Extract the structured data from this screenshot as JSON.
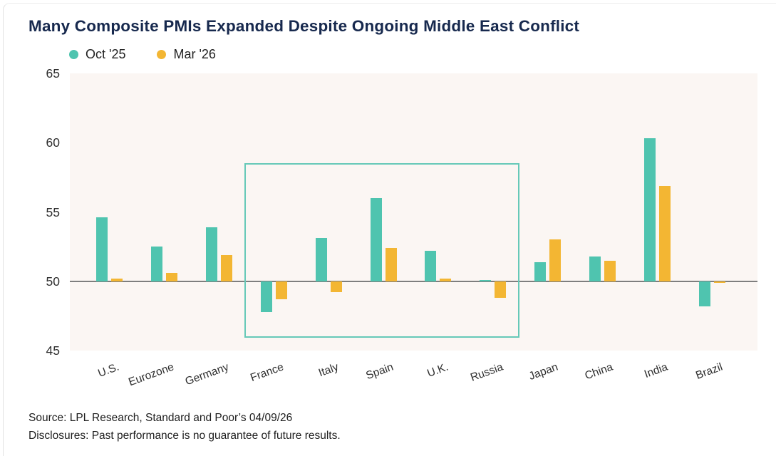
{
  "title": "Many Composite PMIs Expanded Despite Ongoing Middle East Conflict",
  "colors": {
    "title_navy": "#17294e",
    "oct_teal": "#4fc4af",
    "mar_gold": "#f3b633",
    "plot_background": "#fbf6f3",
    "baseline_gray": "#7e7e7e",
    "annotation_teal": "#66c9b8"
  },
  "chart_data": {
    "type": "bar",
    "title": "Many Composite PMIs Expanded Despite Ongoing Middle East Conflict",
    "categories": [
      "U.S.",
      "Eurozone",
      "Germany",
      "France",
      "Italy",
      "Spain",
      "U.K.",
      "Russia",
      "Japan",
      "China",
      "India",
      "Brazil"
    ],
    "series": [
      {
        "name": "Oct '25",
        "color": "#4fc4af",
        "values": [
          54.6,
          52.5,
          53.9,
          47.8,
          53.1,
          56.0,
          52.2,
          50.1,
          51.4,
          51.8,
          60.3,
          48.2
        ]
      },
      {
        "name": "Mar '26",
        "color": "#f3b633",
        "values": [
          50.2,
          50.6,
          51.9,
          48.7,
          49.2,
          52.4,
          50.2,
          48.8,
          53.0,
          51.5,
          56.9,
          49.9
        ]
      }
    ],
    "xlabel": "",
    "ylabel": "",
    "ylim": [
      45,
      65
    ],
    "yticks": [
      45,
      50,
      55,
      60,
      65
    ],
    "baseline": 50,
    "grid": false,
    "legend_position": "top-left",
    "annotation_box": {
      "from_category": "France",
      "to_category": "Russia",
      "y_top": 58.5,
      "y_bottom": 45.9,
      "color": "#66c9b8"
    }
  },
  "footer": {
    "source": "Source: LPL Research, Standard and Poor’s 04/09/26",
    "disclosure": "Disclosures: Past performance is no guarantee of future results."
  }
}
